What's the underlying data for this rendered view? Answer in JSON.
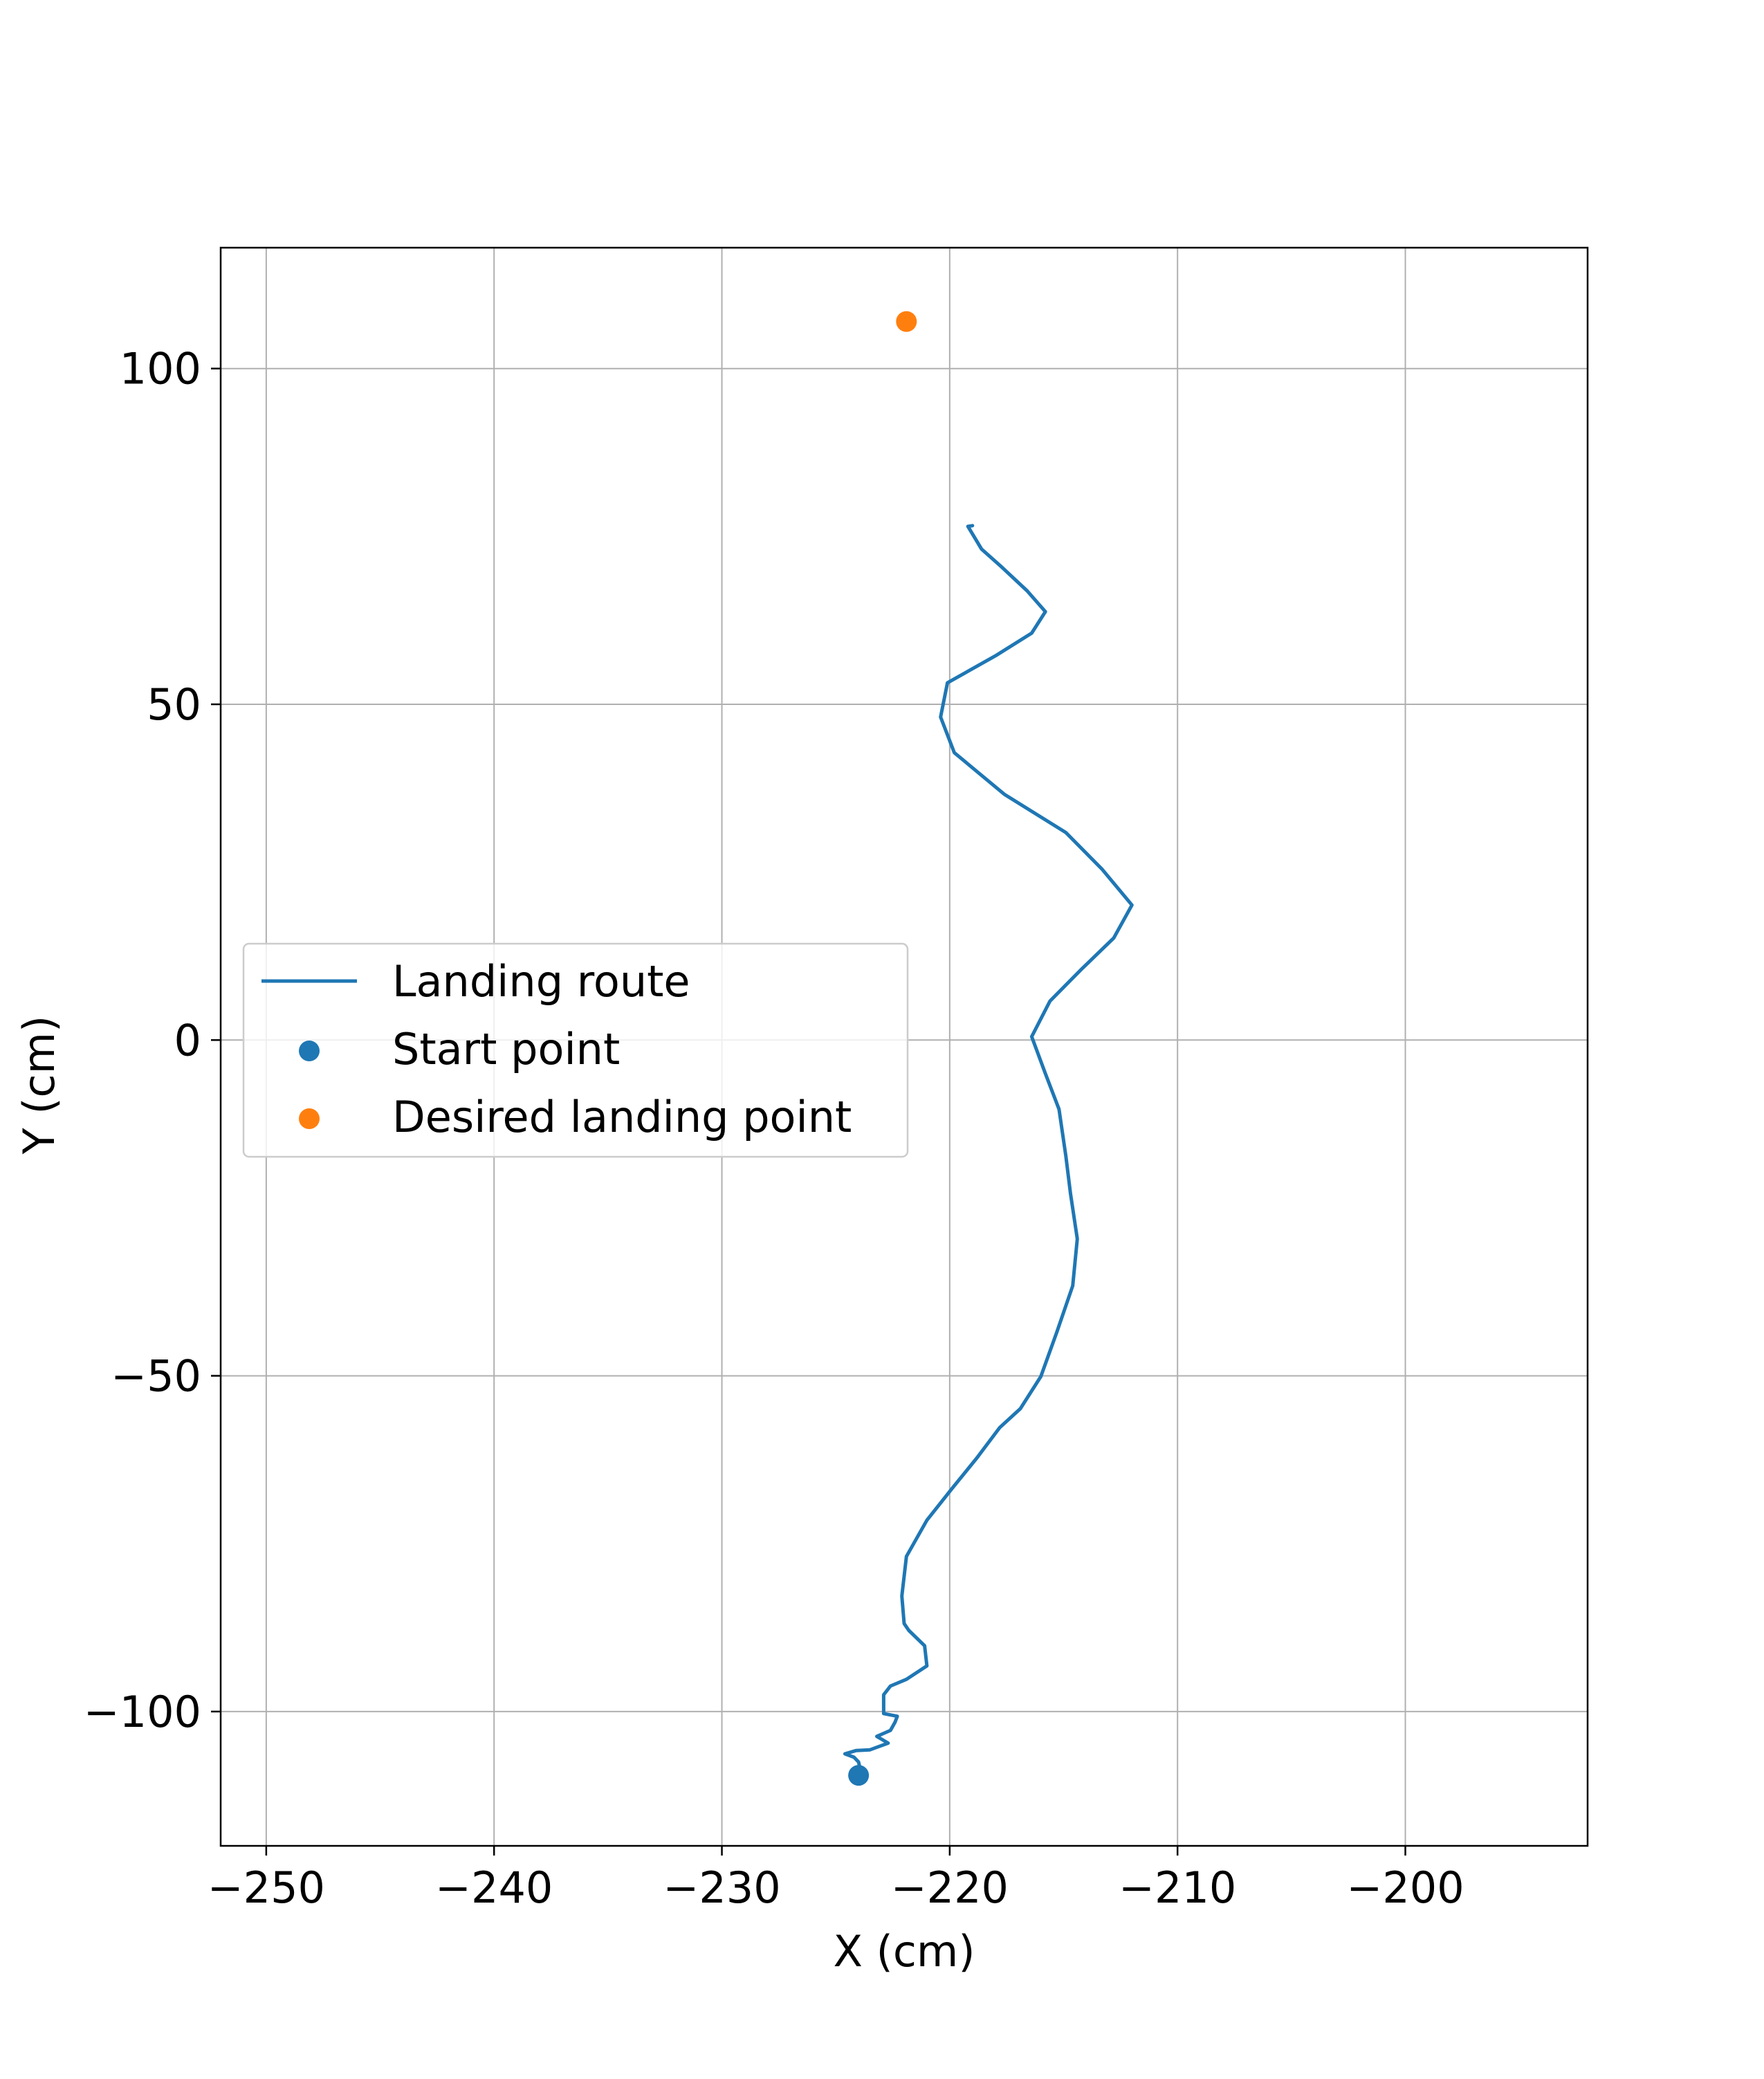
{
  "chart_data": {
    "type": "scatter",
    "xlabel": "X (cm)",
    "ylabel": "Y (cm)",
    "xlim": [
      -252,
      -192
    ],
    "ylim": [
      -120,
      118
    ],
    "xticks": [
      -250,
      -240,
      -230,
      -220,
      -210,
      -200
    ],
    "yticks": [
      -100,
      -50,
      0,
      50,
      100
    ],
    "xtick_labels": [
      "−250",
      "−240",
      "−230",
      "−220",
      "−210",
      "−200"
    ],
    "ytick_labels": [
      "−100",
      "−50",
      "0",
      "50",
      "100"
    ],
    "grid": true,
    "legend_position": "center-left",
    "series": [
      {
        "name": "Landing route",
        "kind": "line",
        "color": "#1f77b4",
        "x": [
          -223.9,
          -224.0,
          -224.2,
          -224.6,
          -224.1,
          -223.5,
          -222.7,
          -223.2,
          -222.6,
          -222.4,
          -222.3,
          -222.9,
          -222.9,
          -222.6,
          -221.9,
          -221.0,
          -221.1,
          -221.8,
          -222.0,
          -222.1,
          -221.9,
          -221.0,
          -219.9,
          -218.8,
          -217.8,
          -216.9,
          -216.0,
          -215.3,
          -214.6,
          -214.4,
          -214.7,
          -214.9,
          -215.2,
          -215.8,
          -216.4,
          -215.6,
          -214.2,
          -212.8,
          -212.0,
          -213.3,
          -214.9,
          -217.6,
          -219.8,
          -220.4,
          -220.1,
          -218.0,
          -216.4,
          -215.8,
          -216.6,
          -217.8,
          -218.6,
          -219.2,
          -219.0
        ],
        "y": [
          -109.0,
          -107.5,
          -106.8,
          -106.3,
          -105.8,
          -105.7,
          -104.7,
          -103.7,
          -102.8,
          -101.6,
          -100.7,
          -100.3,
          -97.5,
          -96.2,
          -95.2,
          -93.2,
          -90.2,
          -87.9,
          -86.9,
          -82.8,
          -76.9,
          -71.5,
          -66.8,
          -62.2,
          -57.7,
          -54.9,
          -50.1,
          -43.5,
          -36.6,
          -29.6,
          -22.8,
          -17.3,
          -10.3,
          -5.0,
          0.5,
          5.8,
          10.6,
          15.2,
          20.1,
          25.4,
          30.9,
          36.6,
          42.8,
          48.1,
          53.2,
          57.2,
          60.6,
          63.8,
          66.9,
          70.7,
          73.1,
          76.5,
          76.6
        ]
      },
      {
        "name": "Start point",
        "kind": "point",
        "color": "#1f77b4",
        "x": [
          -224.0
        ],
        "y": [
          -109.5
        ]
      },
      {
        "name": "Desired landing point",
        "kind": "point",
        "color": "#ff7f0e",
        "x": [
          -221.9
        ],
        "y": [
          107.0
        ]
      }
    ]
  }
}
